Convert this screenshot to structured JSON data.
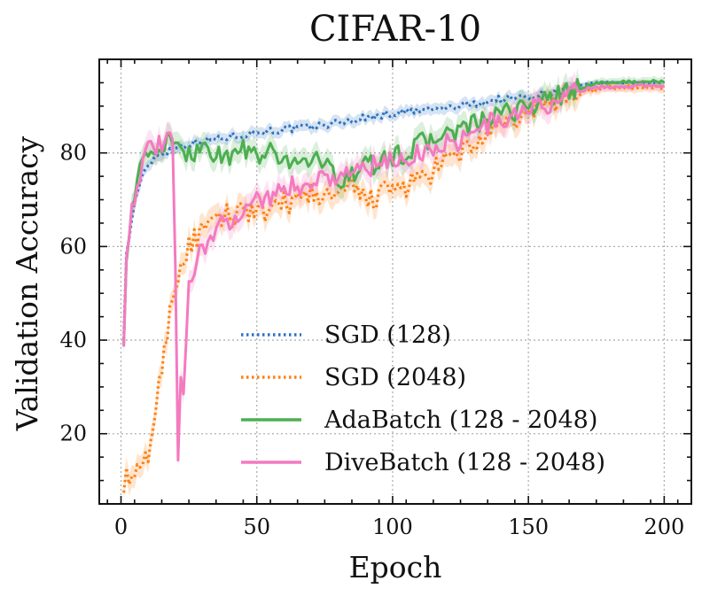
{
  "chart_data": {
    "type": "line",
    "title": "CIFAR-10",
    "xlabel": "Epoch",
    "ylabel": "Validation Accuracy",
    "xlim": [
      -8,
      210
    ],
    "ylim": [
      5,
      100
    ],
    "xticks": [
      0,
      50,
      100,
      150,
      200
    ],
    "yticks": [
      20,
      40,
      60,
      80
    ],
    "grid": true,
    "legend_position": "lower-right",
    "series": [
      {
        "name": "SGD (128)",
        "color": "#2f72c0",
        "dash": "dotted",
        "points": [
          [
            1,
            41
          ],
          [
            2,
            58
          ],
          [
            4,
            66
          ],
          [
            6,
            72
          ],
          [
            8,
            75
          ],
          [
            10,
            77
          ],
          [
            12,
            79
          ],
          [
            15,
            80
          ],
          [
            20,
            81
          ],
          [
            25,
            82
          ],
          [
            30,
            82.5
          ],
          [
            40,
            83.5
          ],
          [
            50,
            84.5
          ],
          [
            60,
            85
          ],
          [
            70,
            85.5
          ],
          [
            80,
            86.5
          ],
          [
            90,
            87.5
          ],
          [
            100,
            88.5
          ],
          [
            110,
            89
          ],
          [
            120,
            89.5
          ],
          [
            130,
            90.5
          ],
          [
            140,
            91.5
          ],
          [
            150,
            92
          ],
          [
            160,
            93
          ],
          [
            170,
            94.5
          ],
          [
            175,
            95
          ],
          [
            200,
            95
          ]
        ]
      },
      {
        "name": "SGD (2048)",
        "color": "#ff7f0e",
        "dash": "dotted",
        "points": [
          [
            1,
            10
          ],
          [
            4,
            10.5
          ],
          [
            8,
            12
          ],
          [
            10,
            16
          ],
          [
            12,
            22
          ],
          [
            14,
            30
          ],
          [
            16,
            38
          ],
          [
            18,
            46
          ],
          [
            20,
            52
          ],
          [
            22,
            56
          ],
          [
            25,
            60
          ],
          [
            30,
            63
          ],
          [
            35,
            65
          ],
          [
            40,
            67
          ],
          [
            45,
            68
          ],
          [
            50,
            68
          ],
          [
            55,
            66
          ],
          [
            60,
            70
          ],
          [
            65,
            69
          ],
          [
            70,
            72
          ],
          [
            75,
            70
          ],
          [
            80,
            71
          ],
          [
            85,
            72
          ],
          [
            90,
            70
          ],
          [
            95,
            71
          ],
          [
            100,
            72
          ],
          [
            105,
            73
          ],
          [
            110,
            74
          ],
          [
            115,
            76
          ],
          [
            120,
            78
          ],
          [
            125,
            80
          ],
          [
            130,
            82
          ],
          [
            135,
            84
          ],
          [
            140,
            85
          ],
          [
            145,
            87
          ],
          [
            150,
            89
          ],
          [
            155,
            90
          ],
          [
            160,
            91
          ],
          [
            165,
            92
          ],
          [
            170,
            93
          ],
          [
            175,
            93.5
          ],
          [
            180,
            94
          ],
          [
            200,
            94
          ]
        ]
      },
      {
        "name": "AdaBatch (128 - 2048)",
        "color": "#4caf50",
        "dash": "solid",
        "points": [
          [
            1,
            41
          ],
          [
            2,
            58
          ],
          [
            4,
            68
          ],
          [
            6,
            74
          ],
          [
            8,
            78
          ],
          [
            10,
            79
          ],
          [
            12,
            80
          ],
          [
            14,
            81
          ],
          [
            16,
            82
          ],
          [
            18,
            82.5
          ],
          [
            20,
            80
          ],
          [
            22,
            81
          ],
          [
            25,
            80
          ],
          [
            30,
            81
          ],
          [
            35,
            80
          ],
          [
            40,
            79
          ],
          [
            45,
            81
          ],
          [
            50,
            79
          ],
          [
            55,
            80
          ],
          [
            60,
            78
          ],
          [
            65,
            79
          ],
          [
            70,
            78
          ],
          [
            75,
            79
          ],
          [
            78,
            75
          ],
          [
            80,
            73
          ],
          [
            82,
            75
          ],
          [
            85,
            76
          ],
          [
            90,
            77
          ],
          [
            95,
            78
          ],
          [
            100,
            79
          ],
          [
            105,
            80
          ],
          [
            110,
            82
          ],
          [
            115,
            83
          ],
          [
            120,
            84
          ],
          [
            125,
            85
          ],
          [
            130,
            86
          ],
          [
            135,
            87
          ],
          [
            140,
            88
          ],
          [
            145,
            89
          ],
          [
            150,
            90
          ],
          [
            155,
            91
          ],
          [
            160,
            92
          ],
          [
            165,
            93
          ],
          [
            170,
            94
          ],
          [
            175,
            95
          ],
          [
            200,
            95.3
          ]
        ]
      },
      {
        "name": "DiveBatch (128 - 2048)",
        "color": "#f47ac0",
        "dash": "solid",
        "points": [
          [
            1,
            41
          ],
          [
            2,
            58
          ],
          [
            4,
            68
          ],
          [
            6,
            74
          ],
          [
            8,
            78
          ],
          [
            10,
            80
          ],
          [
            12,
            81
          ],
          [
            14,
            81.5
          ],
          [
            16,
            82
          ],
          [
            18,
            83
          ],
          [
            19,
            81
          ],
          [
            20,
            55
          ],
          [
            21,
            14
          ],
          [
            22,
            32
          ],
          [
            23,
            28
          ],
          [
            24,
            38
          ],
          [
            25,
            52
          ],
          [
            27,
            56
          ],
          [
            30,
            60
          ],
          [
            35,
            63
          ],
          [
            40,
            66
          ],
          [
            45,
            68
          ],
          [
            50,
            70
          ],
          [
            55,
            71
          ],
          [
            60,
            72
          ],
          [
            65,
            73
          ],
          [
            70,
            74
          ],
          [
            75,
            75
          ],
          [
            80,
            75
          ],
          [
            85,
            76
          ],
          [
            90,
            77
          ],
          [
            95,
            77
          ],
          [
            100,
            78
          ],
          [
            105,
            79
          ],
          [
            110,
            80
          ],
          [
            115,
            81
          ],
          [
            120,
            82
          ],
          [
            125,
            83
          ],
          [
            130,
            84
          ],
          [
            135,
            86
          ],
          [
            140,
            87
          ],
          [
            145,
            88
          ],
          [
            150,
            89
          ],
          [
            155,
            90
          ],
          [
            160,
            91
          ],
          [
            165,
            92
          ],
          [
            170,
            93.5
          ],
          [
            175,
            94
          ],
          [
            200,
            94.5
          ]
        ]
      }
    ]
  }
}
